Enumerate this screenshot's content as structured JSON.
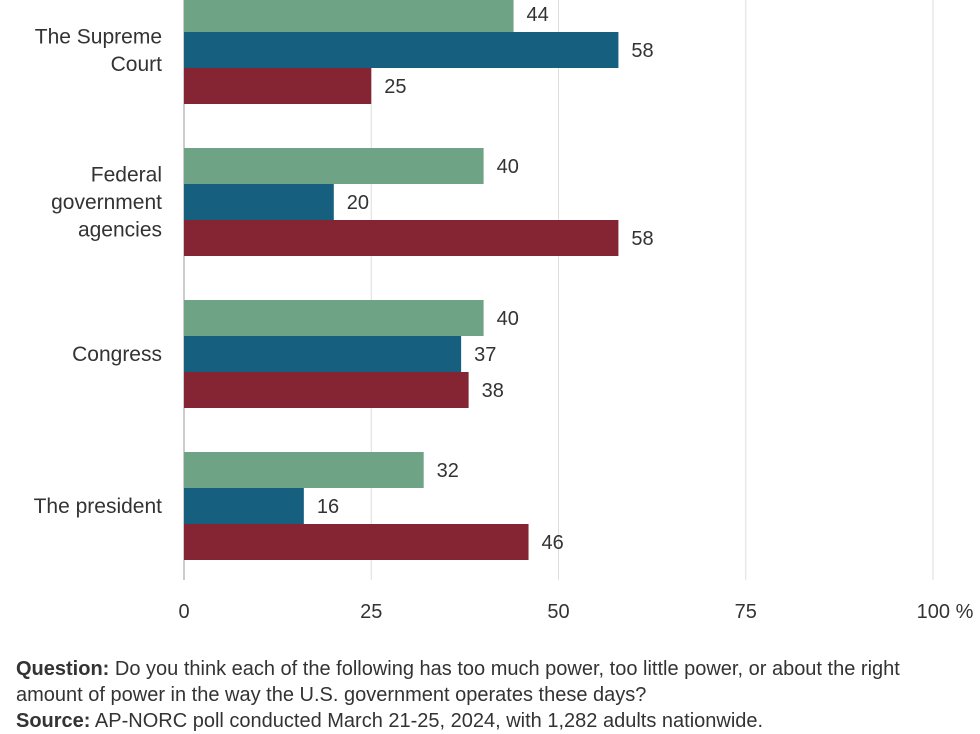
{
  "chart_data": {
    "type": "bar",
    "orientation": "horizontal",
    "categories": [
      "The Supreme Court",
      "Federal government agencies",
      "Congress",
      "The president"
    ],
    "category_lines": [
      [
        "The Supreme",
        "Court"
      ],
      [
        "Federal",
        "government",
        "agencies"
      ],
      [
        "Congress"
      ],
      [
        "The president"
      ]
    ],
    "series": [
      {
        "color": "#6fa386",
        "values": [
          44,
          40,
          40,
          32
        ]
      },
      {
        "color": "#175f7f",
        "values": [
          58,
          20,
          37,
          16
        ]
      },
      {
        "color": "#852533",
        "values": [
          25,
          58,
          38,
          46
        ]
      }
    ],
    "x_ticks": [
      "0",
      "25",
      "50",
      "75",
      "100 %"
    ],
    "xlim": [
      0,
      100
    ],
    "grid": true
  },
  "footer": {
    "question_label": "Question:",
    "question_text": " Do you think each of the following has too much power, too little power, or about the right amount of power in the way the U.S. government operates these days?",
    "source_label": "Source:",
    "source_text": " AP-NORC poll conducted March 21-25, 2024, with 1,282 adults nationwide."
  }
}
